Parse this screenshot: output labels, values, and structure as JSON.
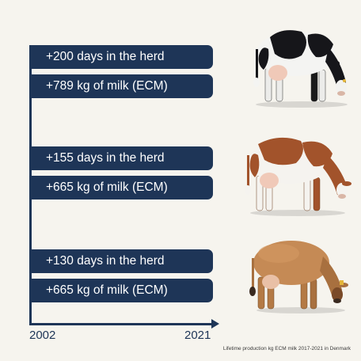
{
  "rows": [
    {
      "days": "+200 days in the herd",
      "milk": "+789 kg of milk (ECM)",
      "cow_icon": "holstein-cow-icon",
      "cow_colors": {
        "body": "#f4f4f2",
        "patches": "#16161a"
      }
    },
    {
      "days": "+155 days in the herd",
      "milk": "+665 kg of milk (ECM)",
      "cow_icon": "red-dairy-cow-icon",
      "cow_colors": {
        "body": "#f5f3ef",
        "patches": "#a2532b"
      }
    },
    {
      "days": "+130 days in the herd",
      "milk": "+665 kg of milk (ECM)",
      "cow_icon": "jersey-cow-icon",
      "cow_colors": {
        "body": "#c58a55",
        "patches": "#a8703f"
      }
    }
  ],
  "axis": {
    "start_year": "2002",
    "end_year": "2021"
  },
  "footnote": "Lifetime production kg ECM milk 2017-2021 in Denmark",
  "colors": {
    "background": "#f6f4ee",
    "accent": "#1e3557",
    "text_on_accent": "#ffffff"
  }
}
